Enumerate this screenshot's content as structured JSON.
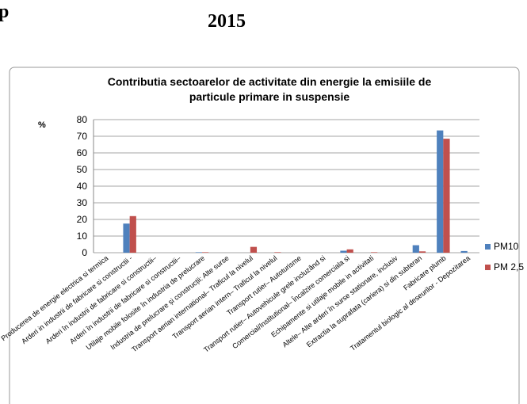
{
  "page": {
    "heading_fragment": "p",
    "heading_year": "2015"
  },
  "chart_data": {
    "type": "bar",
    "title": "Contributia sectoarelor de activitate din energie la emisiile de particule primare in suspensie",
    "y_label": "%",
    "categories": [
      "Producerea de energie electrica si termica",
      "Arderi in industrii de fabricare si constructii -",
      "Arderi în industrii de fabricare si constructii–",
      "Arderi în industrii de fabricare si constructii–",
      "Utilaje mobile folosite în industria de prelucrare",
      "Industria de prelucrare și construcții: Alte surse",
      "Transport aerian international– Traficul la nivelul",
      "Transport aerian intern– Traficul la nivelul",
      "Transport rutier– Autoturisme",
      "Transport rutier– Autovehicule grele incluzând si",
      "Comercial/Institutional– Încalzire comerciala si",
      "Echipamente si utilaje mobile in activitati",
      "Altele– Alte arderi în surse stationare, inclusiv",
      "Extractia la suprafata (cariera) si din subteran",
      "Fabricare plumb",
      "Tratamentul biologic al deseurilor - Depozitarea"
    ],
    "series": [
      {
        "name": "PM10",
        "color": "#4f81bd",
        "values": [
          0,
          17.5,
          0,
          0,
          0.3,
          0,
          0,
          0,
          0,
          0,
          1.2,
          0,
          0,
          4.5,
          73.5,
          1
        ]
      },
      {
        "name": "PM 2,5",
        "color": "#c0504d",
        "values": [
          0,
          22,
          0,
          0,
          0.3,
          0,
          3.5,
          0.3,
          0,
          0,
          2,
          0.3,
          0,
          0.8,
          68.5,
          0
        ]
      }
    ],
    "ylim": [
      0,
      80
    ],
    "yticks": [
      0,
      10,
      20,
      30,
      40,
      50,
      60,
      70,
      80
    ],
    "grid": true,
    "legend": "right"
  }
}
